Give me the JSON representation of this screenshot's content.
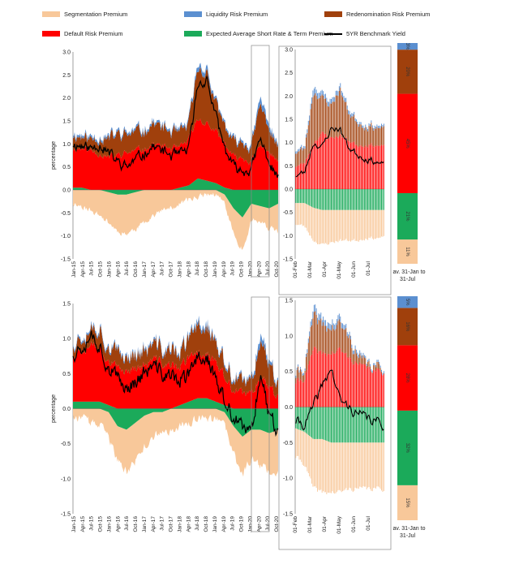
{
  "legend": {
    "items": [
      {
        "key": "seg",
        "label": "Segmentation Premium",
        "color": "#F8C89A"
      },
      {
        "key": "liq",
        "label": "Liquidity Risk Premium",
        "color": "#5B8FD0"
      },
      {
        "key": "red",
        "label": "Redenomination Risk Premium",
        "color": "#A0400C"
      },
      {
        "key": "def",
        "label": "Default Risk Premium",
        "color": "#FF0000"
      },
      {
        "key": "exp",
        "label": "Expected Average Short Rate & Term Premium",
        "color": "#1BAA5A"
      },
      {
        "key": "yld",
        "label": "5YR Benchmark Yield",
        "color": "#000000"
      }
    ]
  },
  "chart_data": [
    {
      "type": "area",
      "panel": "top-long",
      "ylabel": "percentage",
      "ylim": [
        -1.5,
        3.0
      ],
      "yticks": [
        "3.0",
        "2.5",
        "2.0",
        "1.5",
        "1.0",
        "0.5",
        "0.0",
        "-0.5",
        "-1.0",
        "-1.5"
      ],
      "xlabels": [
        "Jan-15",
        "Apr-15",
        "Jul-15",
        "Oct-15",
        "Jan-16",
        "Apr-16",
        "Jul-16",
        "Oct-16",
        "Jan-17",
        "Apr-17",
        "Jul-17",
        "Oct-17",
        "Jan-18",
        "Apr-18",
        "Jul-18",
        "Oct-18",
        "Jan-19",
        "Apr-19",
        "Jul-19",
        "Oct-19",
        "Jan-20",
        "Apr-20",
        "Jul-20",
        "Oct-20"
      ],
      "series_anchors": {
        "seg": [
          -0.3,
          -0.35,
          -0.45,
          -0.55,
          -0.65,
          -0.8,
          -0.85,
          -0.8,
          -0.7,
          -0.55,
          -0.45,
          -0.4,
          -0.3,
          -0.2,
          -0.15,
          -0.1,
          -0.1,
          -0.2,
          -0.55,
          -0.7,
          -0.35,
          -0.35,
          -0.45,
          -0.6
        ],
        "exp_pos": [
          0.05,
          0.05,
          0.0,
          0.0,
          0.0,
          0.0,
          0.0,
          0.0,
          0.0,
          0.0,
          0.0,
          0.0,
          0.05,
          0.1,
          0.25,
          0.2,
          0.15,
          0.05,
          0.0,
          0.0,
          0.0,
          0.0,
          0.0,
          0.0
        ],
        "exp_neg": [
          0.0,
          0.0,
          0.0,
          0.0,
          -0.05,
          -0.1,
          -0.1,
          -0.05,
          0.0,
          0.0,
          0.0,
          0.0,
          0.0,
          0.0,
          0.0,
          0.0,
          0.0,
          -0.1,
          -0.4,
          -0.6,
          -0.3,
          -0.35,
          -0.4,
          -0.3
        ],
        "def": [
          0.85,
          0.85,
          0.85,
          0.8,
          0.7,
          0.75,
          0.8,
          0.85,
          0.9,
          1.0,
          0.95,
          0.9,
          0.85,
          1.0,
          1.3,
          1.25,
          1.1,
          0.95,
          0.7,
          0.7,
          0.6,
          0.95,
          0.85,
          0.6
        ],
        "red": [
          0.3,
          0.25,
          0.25,
          0.35,
          0.4,
          0.45,
          0.4,
          0.4,
          0.4,
          0.45,
          0.4,
          0.35,
          0.3,
          0.35,
          1.1,
          1.1,
          0.6,
          0.4,
          0.3,
          0.35,
          0.3,
          0.9,
          0.5,
          0.3
        ],
        "liq": [
          0.05,
          0.05,
          0.05,
          0.05,
          0.05,
          0.05,
          0.05,
          0.05,
          0.05,
          0.05,
          0.05,
          0.05,
          0.05,
          0.05,
          0.1,
          0.1,
          0.05,
          0.05,
          0.05,
          0.05,
          0.05,
          0.15,
          0.1,
          0.05
        ],
        "yld": [
          1.0,
          0.95,
          0.9,
          1.0,
          0.8,
          0.6,
          0.5,
          0.65,
          0.8,
          0.95,
          0.85,
          0.75,
          0.75,
          0.9,
          2.3,
          2.4,
          1.6,
          0.9,
          0.5,
          0.4,
          0.45,
          1.1,
          0.6,
          0.25
        ]
      }
    },
    {
      "type": "bar",
      "panel": "top-zoom",
      "ylim": [
        -1.5,
        3.0
      ],
      "yticks": [
        "3.0",
        "2.5",
        "2.0",
        "1.5",
        "1.0",
        "0.5",
        "0.0",
        "-0.5",
        "-1.0",
        "-1.5"
      ],
      "xlabels": [
        "01-Feb",
        "01-Mar",
        "01-Apr",
        "01-May",
        "01-Jun",
        "01-Jul"
      ],
      "series_anchors": {
        "seg": [
          -0.45,
          -0.5,
          -0.7,
          -0.75,
          -0.7,
          -0.65,
          -0.65,
          -0.65,
          -0.6,
          -0.6,
          -0.6
        ],
        "exp": [
          -0.3,
          -0.3,
          -0.4,
          -0.45,
          -0.45,
          -0.45,
          -0.45,
          -0.45,
          -0.45,
          -0.45,
          -0.45
        ],
        "def": [
          0.5,
          0.55,
          1.0,
          1.2,
          1.1,
          1.15,
          1.05,
          0.95,
          0.95,
          0.95,
          0.9
        ],
        "red": [
          0.3,
          0.3,
          1.1,
          0.75,
          0.7,
          1.0,
          0.6,
          0.5,
          0.4,
          0.4,
          0.35
        ],
        "liq": [
          0.05,
          0.05,
          0.15,
          0.1,
          0.1,
          0.1,
          0.08,
          0.05,
          0.05,
          0.05,
          0.05
        ],
        "yld": [
          0.3,
          0.35,
          1.0,
          0.9,
          1.3,
          1.3,
          0.9,
          0.75,
          0.65,
          0.6,
          0.5
        ]
      }
    },
    {
      "type": "bar",
      "panel": "top-avg",
      "categories": [
        "Segmentation Premium",
        "Expected Average Short Rate & Term Premium",
        "Default Risk Premium",
        "Redenomination Risk Premium",
        "Liquidity Risk Premium"
      ],
      "values": [
        11,
        21,
        45,
        20,
        3
      ],
      "labels": [
        "11%",
        "21%",
        "45%",
        "20%",
        "3%"
      ],
      "xlabel": "av. 31-Jan to 31-Jul"
    },
    {
      "type": "area",
      "panel": "bottom-long",
      "ylabel": "percentage",
      "ylim": [
        -1.5,
        1.5
      ],
      "yticks": [
        "1.5",
        "1.0",
        "0.5",
        "0.0",
        "-0.5",
        "-1.0",
        "-1.5"
      ],
      "xlabels": [
        "Jan-15",
        "Apr-15",
        "Jul-15",
        "Oct-15",
        "Jan-16",
        "Apr-16",
        "Jul-16",
        "Oct-16",
        "Jan-17",
        "Apr-17",
        "Jul-17",
        "Oct-17",
        "Jan-18",
        "Apr-18",
        "Jul-18",
        "Oct-18",
        "Jan-19",
        "Apr-19",
        "Jul-19",
        "Oct-19",
        "Jan-20",
        "Apr-20",
        "Jul-20",
        "Oct-20"
      ],
      "series_anchors": {
        "seg": [
          -0.1,
          -0.15,
          -0.2,
          -0.25,
          -0.35,
          -0.5,
          -0.6,
          -0.55,
          -0.45,
          -0.35,
          -0.3,
          -0.3,
          -0.25,
          -0.2,
          -0.15,
          -0.15,
          -0.15,
          -0.2,
          -0.4,
          -0.55,
          -0.4,
          -0.5,
          -0.55,
          -0.6
        ],
        "exp_pos": [
          0.1,
          0.1,
          0.1,
          0.1,
          0.05,
          0.0,
          0.0,
          0.0,
          0.0,
          0.0,
          0.0,
          0.0,
          0.05,
          0.1,
          0.15,
          0.15,
          0.1,
          0.05,
          0.0,
          0.0,
          0.0,
          0.0,
          0.0,
          0.0
        ],
        "exp_neg": [
          0.0,
          0.0,
          0.0,
          0.0,
          -0.05,
          -0.25,
          -0.3,
          -0.2,
          -0.1,
          -0.05,
          -0.05,
          0.0,
          0.0,
          0.0,
          0.0,
          0.0,
          0.0,
          -0.05,
          -0.25,
          -0.4,
          -0.3,
          -0.3,
          -0.35,
          -0.3
        ],
        "def": [
          0.7,
          0.75,
          0.85,
          0.8,
          0.65,
          0.55,
          0.55,
          0.6,
          0.6,
          0.7,
          0.65,
          0.6,
          0.55,
          0.6,
          0.65,
          0.65,
          0.55,
          0.4,
          0.25,
          0.2,
          0.2,
          0.5,
          0.3,
          0.2
        ],
        "red": [
          0.15,
          0.2,
          0.25,
          0.25,
          0.2,
          0.2,
          0.2,
          0.2,
          0.2,
          0.2,
          0.2,
          0.2,
          0.2,
          0.25,
          0.4,
          0.4,
          0.25,
          0.2,
          0.15,
          0.15,
          0.15,
          0.55,
          0.3,
          0.2
        ],
        "liq": [
          0.03,
          0.03,
          0.03,
          0.03,
          0.03,
          0.03,
          0.03,
          0.03,
          0.03,
          0.03,
          0.03,
          0.03,
          0.03,
          0.03,
          0.05,
          0.05,
          0.03,
          0.03,
          0.03,
          0.03,
          0.03,
          0.1,
          0.05,
          0.03
        ],
        "yld": [
          0.8,
          0.9,
          1.1,
          0.9,
          0.6,
          0.4,
          0.3,
          0.4,
          0.5,
          0.6,
          0.5,
          0.45,
          0.4,
          0.45,
          0.75,
          0.75,
          0.4,
          0.1,
          -0.15,
          -0.3,
          -0.35,
          0.55,
          -0.1,
          -0.3
        ]
      }
    },
    {
      "type": "bar",
      "panel": "bottom-zoom",
      "ylim": [
        -1.5,
        1.5
      ],
      "yticks": [
        "1.5",
        "1.0",
        "0.5",
        "0.0",
        "-0.5",
        "-1.0",
        "-1.5"
      ],
      "xlabels": [
        "01-Feb",
        "01-Mar",
        "01-Apr",
        "01-May",
        "01-Jun",
        "01-Jul"
      ],
      "series_anchors": {
        "seg": [
          -0.4,
          -0.45,
          -0.7,
          -0.75,
          -0.7,
          -0.7,
          -0.65,
          -0.65,
          -0.65,
          -0.65,
          -0.65
        ],
        "exp": [
          -0.3,
          -0.35,
          -0.45,
          -0.45,
          -0.5,
          -0.5,
          -0.5,
          -0.5,
          -0.5,
          -0.5,
          -0.5
        ],
        "def": [
          0.35,
          0.4,
          0.8,
          0.75,
          0.75,
          0.8,
          0.7,
          0.6,
          0.55,
          0.5,
          0.5
        ],
        "red": [
          0.1,
          0.15,
          0.45,
          0.4,
          0.35,
          0.35,
          0.3,
          0.1,
          0.05,
          0.05,
          0.05
        ],
        "liq": [
          0.03,
          0.03,
          0.1,
          0.08,
          0.08,
          0.08,
          0.05,
          0.05,
          0.03,
          0.03,
          0.03
        ],
        "yld": [
          -0.2,
          -0.25,
          0.0,
          0.3,
          0.55,
          0.1,
          0.0,
          -0.1,
          -0.15,
          -0.2,
          -0.25
        ]
      }
    },
    {
      "type": "bar",
      "panel": "bottom-avg",
      "categories": [
        "Segmentation Premium",
        "Expected Average Short Rate & Term Premium",
        "Default Risk Premium",
        "Redenomination Risk Premium",
        "Liquidity Risk Premium"
      ],
      "values": [
        15,
        32,
        28,
        16,
        5
      ],
      "labels": [
        "15%",
        "32%",
        "28%",
        "16%",
        "5%"
      ],
      "xlabel": "av. 31-Jan to 31-Jul"
    }
  ]
}
